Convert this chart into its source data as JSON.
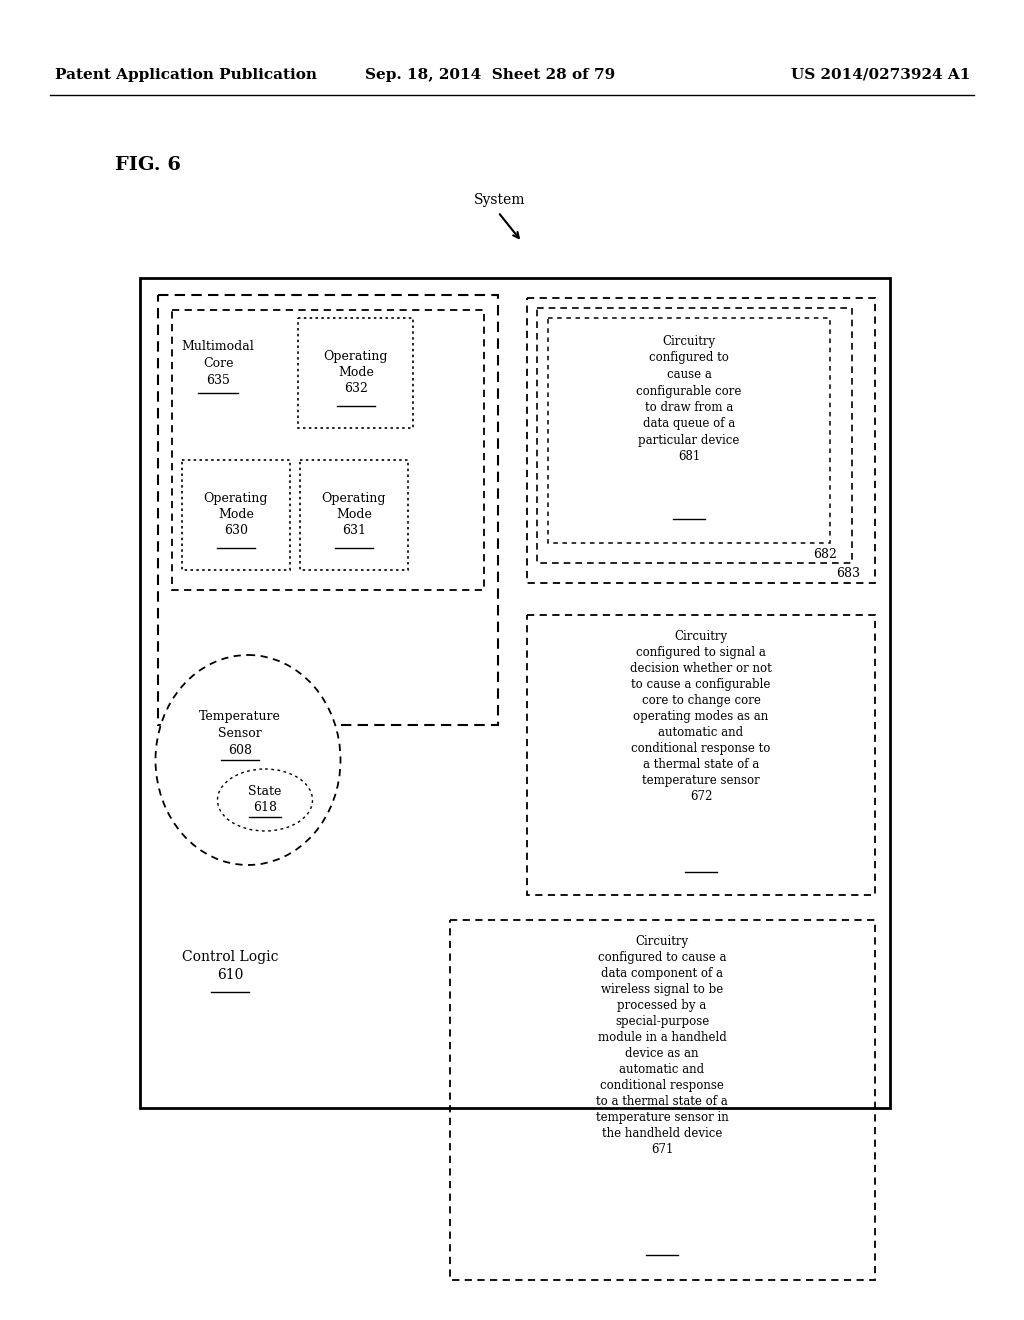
{
  "header_left": "Patent Application Publication",
  "header_mid": "Sep. 18, 2014  Sheet 28 of 79",
  "header_right": "US 2014/0273924 A1",
  "fig_label": "FIG. 6",
  "system_label": "System"
}
